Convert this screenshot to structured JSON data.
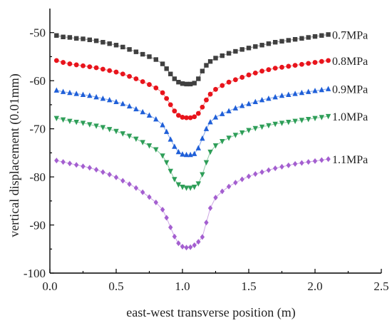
{
  "chart_data": {
    "type": "scatter",
    "title": "",
    "xlabel": "east-west transverse position  (m)",
    "ylabel": "vertical displacement  (0.01mm)",
    "xlim": [
      0.0,
      2.5
    ],
    "ylim": [
      -100,
      -45
    ],
    "xticks": [
      "0.0",
      "0.5",
      "1.0",
      "1.5",
      "2.0",
      "2.5"
    ],
    "yticks": [
      "-50",
      "-60",
      "-70",
      "-80",
      "-90",
      "-100"
    ],
    "xtick_values": [
      0.0,
      0.5,
      1.0,
      1.5,
      2.0,
      2.5
    ],
    "ytick_values": [
      -50,
      -60,
      -70,
      -80,
      -90,
      -100
    ],
    "grid": false,
    "legend": "labels at right end of each series",
    "series": [
      {
        "name": "0.7MPa",
        "color": "#404040",
        "marker": "square",
        "points": [
          [
            0.05,
            -50.6
          ],
          [
            0.1,
            -50.9
          ],
          [
            0.15,
            -51.0
          ],
          [
            0.2,
            -51.2
          ],
          [
            0.25,
            -51.3
          ],
          [
            0.3,
            -51.5
          ],
          [
            0.35,
            -51.7
          ],
          [
            0.4,
            -52.0
          ],
          [
            0.45,
            -52.3
          ],
          [
            0.5,
            -52.6
          ],
          [
            0.55,
            -53.0
          ],
          [
            0.6,
            -53.5
          ],
          [
            0.65,
            -54.0
          ],
          [
            0.7,
            -54.5
          ],
          [
            0.75,
            -55.0
          ],
          [
            0.8,
            -55.6
          ],
          [
            0.85,
            -56.5
          ],
          [
            0.88,
            -57.5
          ],
          [
            0.91,
            -58.6
          ],
          [
            0.94,
            -59.6
          ],
          [
            0.97,
            -60.3
          ],
          [
            1.0,
            -60.6
          ],
          [
            1.03,
            -60.7
          ],
          [
            1.06,
            -60.7
          ],
          [
            1.09,
            -60.5
          ],
          [
            1.12,
            -59.6
          ],
          [
            1.15,
            -58.0
          ],
          [
            1.18,
            -56.8
          ],
          [
            1.21,
            -56.0
          ],
          [
            1.25,
            -55.3
          ],
          [
            1.3,
            -54.8
          ],
          [
            1.35,
            -54.3
          ],
          [
            1.4,
            -53.9
          ],
          [
            1.45,
            -53.5
          ],
          [
            1.5,
            -53.2
          ],
          [
            1.55,
            -52.9
          ],
          [
            1.6,
            -52.6
          ],
          [
            1.65,
            -52.3
          ],
          [
            1.7,
            -52.0
          ],
          [
            1.75,
            -51.8
          ],
          [
            1.8,
            -51.6
          ],
          [
            1.85,
            -51.4
          ],
          [
            1.9,
            -51.2
          ],
          [
            1.95,
            -51.0
          ],
          [
            2.0,
            -50.8
          ],
          [
            2.05,
            -50.6
          ],
          [
            2.1,
            -50.4
          ]
        ]
      },
      {
        "name": "0.8MPa",
        "color": "#e8141c",
        "marker": "circle",
        "points": [
          [
            0.05,
            -55.8
          ],
          [
            0.1,
            -56.2
          ],
          [
            0.15,
            -56.5
          ],
          [
            0.2,
            -56.7
          ],
          [
            0.25,
            -56.9
          ],
          [
            0.3,
            -57.1
          ],
          [
            0.35,
            -57.3
          ],
          [
            0.4,
            -57.6
          ],
          [
            0.45,
            -57.9
          ],
          [
            0.5,
            -58.2
          ],
          [
            0.55,
            -58.6
          ],
          [
            0.6,
            -59.1
          ],
          [
            0.65,
            -59.6
          ],
          [
            0.7,
            -60.2
          ],
          [
            0.75,
            -60.8
          ],
          [
            0.8,
            -61.5
          ],
          [
            0.85,
            -62.5
          ],
          [
            0.88,
            -63.7
          ],
          [
            0.91,
            -65.0
          ],
          [
            0.94,
            -66.3
          ],
          [
            0.97,
            -67.2
          ],
          [
            1.0,
            -67.6
          ],
          [
            1.03,
            -67.7
          ],
          [
            1.06,
            -67.7
          ],
          [
            1.09,
            -67.5
          ],
          [
            1.12,
            -66.8
          ],
          [
            1.15,
            -65.5
          ],
          [
            1.18,
            -64.0
          ],
          [
            1.21,
            -62.8
          ],
          [
            1.25,
            -61.8
          ],
          [
            1.3,
            -61.0
          ],
          [
            1.35,
            -60.3
          ],
          [
            1.4,
            -59.8
          ],
          [
            1.45,
            -59.3
          ],
          [
            1.5,
            -58.8
          ],
          [
            1.55,
            -58.4
          ],
          [
            1.6,
            -58.0
          ],
          [
            1.65,
            -57.7
          ],
          [
            1.7,
            -57.4
          ],
          [
            1.75,
            -57.2
          ],
          [
            1.8,
            -57.0
          ],
          [
            1.85,
            -56.8
          ],
          [
            1.9,
            -56.6
          ],
          [
            1.95,
            -56.4
          ],
          [
            2.0,
            -56.2
          ],
          [
            2.05,
            -56.0
          ],
          [
            2.1,
            -55.8
          ]
        ]
      },
      {
        "name": "0.9MPa",
        "color": "#1f5fd8",
        "marker": "triangle-up",
        "points": [
          [
            0.05,
            -62.0
          ],
          [
            0.1,
            -62.3
          ],
          [
            0.15,
            -62.5
          ],
          [
            0.2,
            -62.7
          ],
          [
            0.25,
            -62.9
          ],
          [
            0.3,
            -63.1
          ],
          [
            0.35,
            -63.4
          ],
          [
            0.4,
            -63.7
          ],
          [
            0.45,
            -64.0
          ],
          [
            0.5,
            -64.4
          ],
          [
            0.55,
            -64.8
          ],
          [
            0.6,
            -65.3
          ],
          [
            0.65,
            -65.9
          ],
          [
            0.7,
            -66.5
          ],
          [
            0.75,
            -67.2
          ],
          [
            0.8,
            -68.0
          ],
          [
            0.85,
            -69.2
          ],
          [
            0.88,
            -70.6
          ],
          [
            0.91,
            -72.2
          ],
          [
            0.94,
            -73.7
          ],
          [
            0.97,
            -74.8
          ],
          [
            1.0,
            -75.3
          ],
          [
            1.03,
            -75.4
          ],
          [
            1.06,
            -75.4
          ],
          [
            1.09,
            -75.2
          ],
          [
            1.12,
            -74.0
          ],
          [
            1.15,
            -72.0
          ],
          [
            1.18,
            -70.0
          ],
          [
            1.21,
            -68.6
          ],
          [
            1.25,
            -67.6
          ],
          [
            1.3,
            -66.9
          ],
          [
            1.35,
            -66.3
          ],
          [
            1.4,
            -65.7
          ],
          [
            1.45,
            -65.2
          ],
          [
            1.5,
            -64.8
          ],
          [
            1.55,
            -64.4
          ],
          [
            1.6,
            -64.0
          ],
          [
            1.65,
            -63.7
          ],
          [
            1.7,
            -63.4
          ],
          [
            1.75,
            -63.1
          ],
          [
            1.8,
            -62.9
          ],
          [
            1.85,
            -62.7
          ],
          [
            1.9,
            -62.5
          ],
          [
            1.95,
            -62.3
          ],
          [
            2.0,
            -62.1
          ],
          [
            2.05,
            -61.9
          ],
          [
            2.1,
            -61.7
          ]
        ]
      },
      {
        "name": "1.0MPa",
        "color": "#2e9e58",
        "marker": "triangle-down",
        "points": [
          [
            0.05,
            -67.8
          ],
          [
            0.1,
            -68.1
          ],
          [
            0.15,
            -68.4
          ],
          [
            0.2,
            -68.6
          ],
          [
            0.25,
            -68.8
          ],
          [
            0.3,
            -69.1
          ],
          [
            0.35,
            -69.4
          ],
          [
            0.4,
            -69.7
          ],
          [
            0.45,
            -70.1
          ],
          [
            0.5,
            -70.5
          ],
          [
            0.55,
            -71.0
          ],
          [
            0.6,
            -71.5
          ],
          [
            0.65,
            -72.1
          ],
          [
            0.7,
            -72.8
          ],
          [
            0.75,
            -73.5
          ],
          [
            0.8,
            -74.3
          ],
          [
            0.85,
            -75.6
          ],
          [
            0.88,
            -77.0
          ],
          [
            0.91,
            -78.8
          ],
          [
            0.94,
            -80.5
          ],
          [
            0.97,
            -81.6
          ],
          [
            1.0,
            -82.1
          ],
          [
            1.03,
            -82.3
          ],
          [
            1.06,
            -82.3
          ],
          [
            1.09,
            -82.1
          ],
          [
            1.12,
            -81.4
          ],
          [
            1.15,
            -79.5
          ],
          [
            1.18,
            -77.0
          ],
          [
            1.21,
            -74.8
          ],
          [
            1.25,
            -73.5
          ],
          [
            1.3,
            -72.6
          ],
          [
            1.35,
            -71.9
          ],
          [
            1.4,
            -71.3
          ],
          [
            1.45,
            -70.8
          ],
          [
            1.5,
            -70.3
          ],
          [
            1.55,
            -69.9
          ],
          [
            1.6,
            -69.6
          ],
          [
            1.65,
            -69.3
          ],
          [
            1.7,
            -69.0
          ],
          [
            1.75,
            -68.8
          ],
          [
            1.8,
            -68.6
          ],
          [
            1.85,
            -68.4
          ],
          [
            1.9,
            -68.2
          ],
          [
            1.95,
            -68.0
          ],
          [
            2.0,
            -67.8
          ],
          [
            2.05,
            -67.6
          ],
          [
            2.1,
            -67.4
          ]
        ]
      },
      {
        "name": "1.1MPa",
        "color": "#a45fd0",
        "marker": "diamond",
        "points": [
          [
            0.05,
            -76.6
          ],
          [
            0.1,
            -76.9
          ],
          [
            0.15,
            -77.2
          ],
          [
            0.2,
            -77.5
          ],
          [
            0.25,
            -77.8
          ],
          [
            0.3,
            -78.1
          ],
          [
            0.35,
            -78.5
          ],
          [
            0.4,
            -79.0
          ],
          [
            0.45,
            -79.5
          ],
          [
            0.5,
            -80.1
          ],
          [
            0.55,
            -80.8
          ],
          [
            0.6,
            -81.5
          ],
          [
            0.65,
            -82.3
          ],
          [
            0.7,
            -83.2
          ],
          [
            0.75,
            -84.2
          ],
          [
            0.8,
            -85.3
          ],
          [
            0.85,
            -86.8
          ],
          [
            0.88,
            -88.5
          ],
          [
            0.91,
            -90.5
          ],
          [
            0.94,
            -92.4
          ],
          [
            0.97,
            -93.8
          ],
          [
            1.0,
            -94.5
          ],
          [
            1.03,
            -94.7
          ],
          [
            1.06,
            -94.6
          ],
          [
            1.09,
            -94.2
          ],
          [
            1.12,
            -93.5
          ],
          [
            1.15,
            -92.5
          ],
          [
            1.18,
            -89.5
          ],
          [
            1.21,
            -86.5
          ],
          [
            1.25,
            -84.3
          ],
          [
            1.3,
            -83.0
          ],
          [
            1.35,
            -82.0
          ],
          [
            1.4,
            -81.2
          ],
          [
            1.45,
            -80.5
          ],
          [
            1.5,
            -79.9
          ],
          [
            1.55,
            -79.4
          ],
          [
            1.6,
            -79.0
          ],
          [
            1.65,
            -78.6
          ],
          [
            1.7,
            -78.2
          ],
          [
            1.75,
            -77.9
          ],
          [
            1.8,
            -77.6
          ],
          [
            1.85,
            -77.3
          ],
          [
            1.9,
            -77.1
          ],
          [
            1.95,
            -76.9
          ],
          [
            2.0,
            -76.7
          ],
          [
            2.05,
            -76.5
          ],
          [
            2.1,
            -76.3
          ]
        ]
      }
    ]
  }
}
